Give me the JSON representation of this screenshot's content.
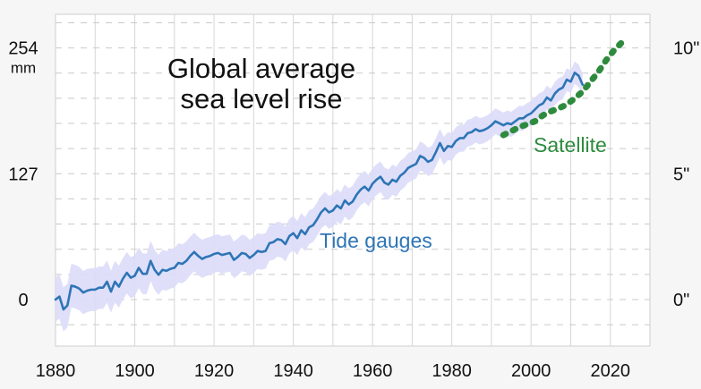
{
  "chart_data": {
    "type": "line",
    "title": "Global average\nsea level rise",
    "xlabel": "",
    "ylabel": "",
    "xlim": [
      1880,
      2030
    ],
    "ylim": [
      -47,
      288
    ],
    "grid": true,
    "legend": "inline labels",
    "x_ticks": [
      1880,
      1900,
      1920,
      1940,
      1960,
      1980,
      2000,
      2020
    ],
    "y_ticks_left": [
      {
        "value": 0,
        "label": "0"
      },
      {
        "value": 127,
        "label": "127"
      },
      {
        "value": 254,
        "label": "254",
        "unit": "mm"
      }
    ],
    "y_ticks_right": [
      {
        "value": 0,
        "label": "0\""
      },
      {
        "value": 127,
        "label": "5\""
      },
      {
        "value": 254,
        "label": "10\""
      }
    ],
    "series": [
      {
        "name": "Tide gauges",
        "color": "#2e75b6",
        "band_color": "#dcdcfa",
        "x": [
          1880,
          1881,
          1882,
          1883,
          1884,
          1885,
          1886,
          1887,
          1888,
          1889,
          1890,
          1891,
          1892,
          1893,
          1894,
          1895,
          1896,
          1897,
          1898,
          1899,
          1900,
          1901,
          1902,
          1903,
          1904,
          1905,
          1906,
          1907,
          1908,
          1909,
          1910,
          1911,
          1912,
          1913,
          1914,
          1915,
          1916,
          1917,
          1918,
          1919,
          1920,
          1921,
          1922,
          1923,
          1924,
          1925,
          1926,
          1927,
          1928,
          1929,
          1930,
          1931,
          1932,
          1933,
          1934,
          1935,
          1936,
          1937,
          1938,
          1939,
          1940,
          1941,
          1942,
          1943,
          1944,
          1945,
          1946,
          1947,
          1948,
          1949,
          1950,
          1951,
          1952,
          1953,
          1954,
          1955,
          1956,
          1957,
          1958,
          1959,
          1960,
          1961,
          1962,
          1963,
          1964,
          1965,
          1966,
          1967,
          1968,
          1969,
          1970,
          1971,
          1972,
          1973,
          1974,
          1975,
          1976,
          1977,
          1978,
          1979,
          1980,
          1981,
          1982,
          1983,
          1984,
          1985,
          1986,
          1987,
          1988,
          1989,
          1990,
          1991,
          1992,
          1993,
          1994,
          1995,
          1996,
          1997,
          1998,
          1999,
          2000,
          2001,
          2002,
          2003,
          2004,
          2005,
          2006,
          2007,
          2008,
          2009,
          2010,
          2011,
          2012,
          2013
        ],
        "values": [
          0,
          3,
          -10,
          -6,
          14,
          13,
          11,
          7,
          9,
          10,
          10,
          12,
          12,
          18,
          8,
          18,
          13,
          21,
          27,
          22,
          24,
          32,
          26,
          26,
          39,
          30,
          25,
          30,
          29,
          31,
          32,
          37,
          36,
          39,
          44,
          48,
          44,
          41,
          43,
          44,
          46,
          47,
          45,
          46,
          47,
          40,
          43,
          47,
          46,
          42,
          45,
          49,
          48,
          49,
          57,
          58,
          61,
          60,
          56,
          64,
          67,
          62,
          70,
          66,
          73,
          75,
          81,
          88,
          92,
          88,
          90,
          95,
          92,
          100,
          96,
          99,
          106,
          111,
          114,
          110,
          117,
          121,
          124,
          118,
          116,
          121,
          119,
          125,
          128,
          133,
          135,
          137,
          145,
          143,
          139,
          141,
          149,
          158,
          150,
          155,
          154,
          160,
          163,
          163,
          168,
          169,
          172,
          170,
          171,
          173,
          176,
          180,
          178,
          176,
          178,
          177,
          180,
          183,
          183,
          186,
          188,
          192,
          196,
          198,
          204,
          201,
          208,
          212,
          214,
          222,
          220,
          229,
          226,
          217
        ],
        "band_halfwidth_mm": 14
      },
      {
        "name": "Satellite",
        "color": "#2e8b3e",
        "style": "dotted",
        "x": [
          1993,
          1995,
          1997,
          1999,
          2001,
          2003,
          2005,
          2007,
          2009,
          2011,
          2013,
          2015,
          2017,
          2019,
          2021,
          2023
        ],
        "values": [
          166,
          170,
          174,
          177,
          180,
          186,
          190,
          193,
          197,
          203,
          210,
          220,
          230,
          242,
          252,
          260
        ]
      }
    ]
  }
}
